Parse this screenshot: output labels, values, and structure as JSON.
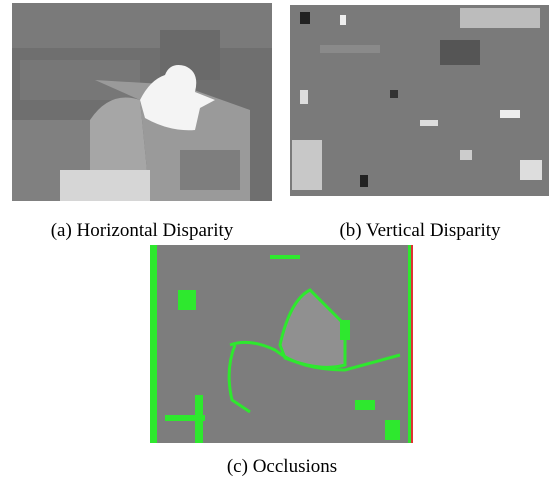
{
  "figures": [
    {
      "caption": "(a) Horizontal Disparity"
    },
    {
      "caption": "(b) Vertical Disparity"
    },
    {
      "caption": "(c) Occlusions"
    }
  ]
}
